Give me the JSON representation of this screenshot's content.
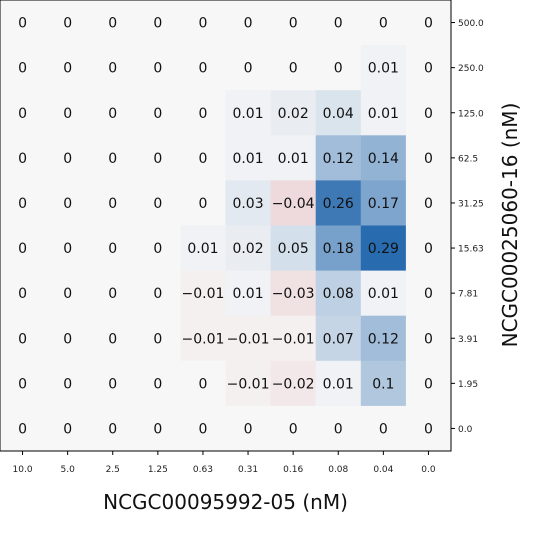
{
  "chart_data": {
    "type": "heatmap",
    "xlabel": "NCGC00095992-05 (nM)",
    "ylabel": "NCGC00025060-16 (nM)",
    "x_ticks": [
      "10.0",
      "5.0",
      "2.5",
      "1.25",
      "0.63",
      "0.31",
      "0.16",
      "0.08",
      "0.04",
      "0.0"
    ],
    "y_ticks": [
      "500.0",
      "250.0",
      "125.0",
      "62.5",
      "31.25",
      "15.63",
      "7.81",
      "3.91",
      "1.95",
      "0.0"
    ],
    "values": [
      [
        0,
        0,
        0,
        0,
        0,
        0,
        0,
        0,
        0,
        0
      ],
      [
        0,
        0,
        0,
        0,
        0,
        0,
        0,
        0,
        0.01,
        0
      ],
      [
        0,
        0,
        0,
        0,
        0,
        0.01,
        0.02,
        0.04,
        0.01,
        0
      ],
      [
        0,
        0,
        0,
        0,
        0,
        0.01,
        0.01,
        0.12,
        0.14,
        0
      ],
      [
        0,
        0,
        0,
        0,
        0,
        0.03,
        -0.04,
        0.26,
        0.17,
        0
      ],
      [
        0,
        0,
        0,
        0,
        0.01,
        0.02,
        0.05,
        0.18,
        0.29,
        0
      ],
      [
        0,
        0,
        0,
        0,
        -0.01,
        0.01,
        -0.03,
        0.08,
        0.01,
        0
      ],
      [
        0,
        0,
        0,
        0,
        -0.01,
        -0.01,
        -0.01,
        0.07,
        0.12,
        0
      ],
      [
        0,
        0,
        0,
        0,
        0,
        -0.01,
        -0.02,
        0.01,
        0.1,
        0
      ],
      [
        0,
        0,
        0,
        0,
        0,
        0,
        0,
        0,
        0,
        0
      ]
    ],
    "labels": [
      [
        "0",
        "0",
        "0",
        "0",
        "0",
        "0",
        "0",
        "0",
        "0",
        "0"
      ],
      [
        "0",
        "0",
        "0",
        "0",
        "0",
        "0",
        "0",
        "0",
        "0.01",
        "0"
      ],
      [
        "0",
        "0",
        "0",
        "0",
        "0",
        "0.01",
        "0.02",
        "0.04",
        "0.01",
        "0"
      ],
      [
        "0",
        "0",
        "0",
        "0",
        "0",
        "0.01",
        "0.01",
        "0.12",
        "0.14",
        "0"
      ],
      [
        "0",
        "0",
        "0",
        "0",
        "0",
        "0.03",
        "−0.04",
        "0.26",
        "0.17",
        "0"
      ],
      [
        "0",
        "0",
        "0",
        "0",
        "0.01",
        "0.02",
        "0.05",
        "0.18",
        "0.29",
        "0"
      ],
      [
        "0",
        "0",
        "0",
        "0",
        "−0.01",
        "0.01",
        "−0.03",
        "0.08",
        "0.01",
        "0"
      ],
      [
        "0",
        "0",
        "0",
        "0",
        "−0.01",
        "−0.01",
        "−0.01",
        "0.07",
        "0.12",
        "0"
      ],
      [
        "0",
        "0",
        "0",
        "0",
        "0",
        "−0.01",
        "−0.02",
        "0.01",
        "0.1",
        "0"
      ],
      [
        "0",
        "0",
        "0",
        "0",
        "0",
        "0",
        "0",
        "0",
        "0",
        "0"
      ]
    ],
    "color_range": [
      -0.3,
      0.3
    ],
    "colormap": "red-white-blue (diverging)",
    "colors": {
      "positive": "#2166ac",
      "neutral": "#f7f7f7",
      "negative": "#b2182b"
    },
    "y_axis_position": "right",
    "grid": false
  }
}
